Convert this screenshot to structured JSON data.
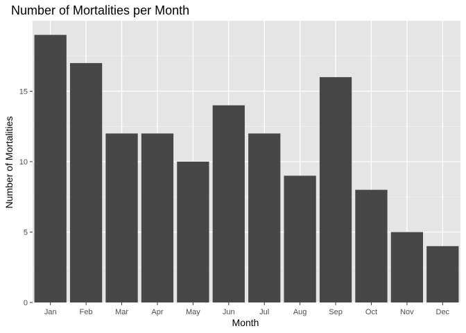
{
  "chart_data": {
    "type": "bar",
    "title": "Number of Mortalities per Month",
    "xlabel": "Month",
    "ylabel": "Number of Mortalities",
    "categories": [
      "Jan",
      "Feb",
      "Mar",
      "Apr",
      "May",
      "Jun",
      "Jul",
      "Aug",
      "Sep",
      "Oct",
      "Nov",
      "Dec"
    ],
    "values": [
      19,
      17,
      12,
      12,
      10,
      14,
      12,
      9,
      16,
      8,
      5,
      4
    ],
    "ylim": [
      0,
      20
    ],
    "yticks": [
      "0",
      "5",
      "10",
      "15"
    ],
    "ytick_values": [
      0,
      5,
      10,
      15
    ],
    "grid": true,
    "legend": "none",
    "colors": {
      "bar": "#474747",
      "panel": "#e5e5e5",
      "grid_major": "#ffffff",
      "grid_minor": "#f2f2f2",
      "tick_text": "#4d4d4d",
      "tick_mark": "#333333"
    }
  }
}
